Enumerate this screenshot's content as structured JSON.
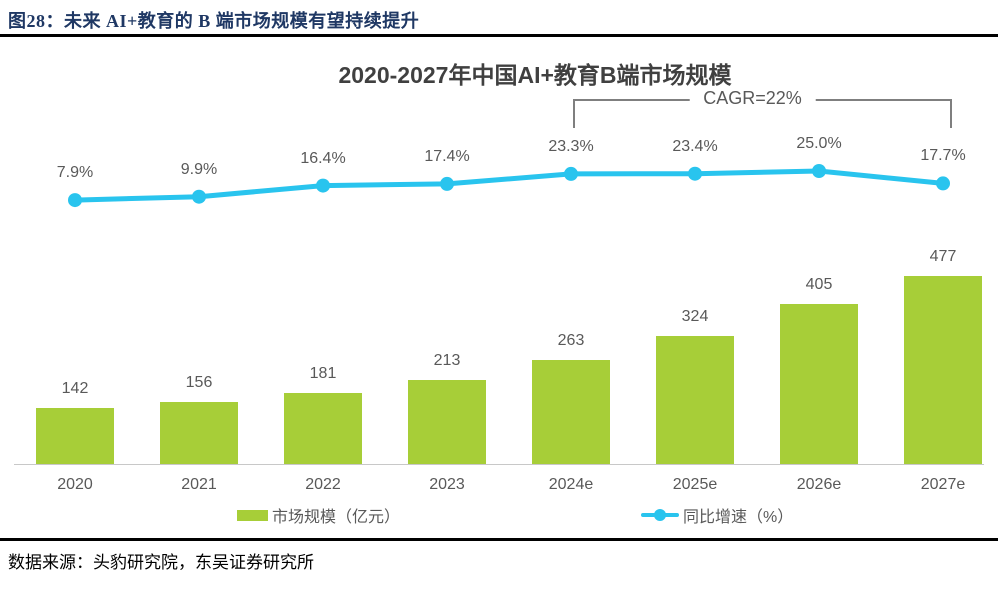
{
  "header": {
    "title": "图28：未来 AI+教育的 B 端市场规模有望持续提升"
  },
  "chart_data": {
    "type": "combo",
    "title": "2020-2027年中国AI+教育B端市场规模",
    "categories": [
      "2020",
      "2021",
      "2022",
      "2023",
      "2024e",
      "2025e",
      "2026e",
      "2027e"
    ],
    "series": [
      {
        "name": "市场规模（亿元）",
        "type": "bar",
        "values": [
          142,
          156,
          181,
          213,
          263,
          324,
          405,
          477
        ],
        "unit": "亿元",
        "color": "#a7ce38"
      },
      {
        "name": "同比增速（%）",
        "type": "line",
        "values": [
          7.9,
          9.9,
          16.4,
          17.4,
          23.3,
          23.4,
          25.0,
          17.7
        ],
        "labels": [
          "7.9%",
          "9.9%",
          "16.4%",
          "17.4%",
          "23.3%",
          "23.4%",
          "25.0%",
          "17.7%"
        ],
        "unit": "%",
        "color": "#29c4ee"
      }
    ],
    "annotation": {
      "label": "CAGR=22%",
      "span_categories": [
        "2024e",
        "2027e"
      ],
      "span_indices": [
        4,
        7
      ]
    },
    "legend_position": "bottom",
    "grid": false,
    "value_labels": true,
    "colors": {
      "bar": "#a7ce38",
      "line": "#29c4ee",
      "label_text": "#595959",
      "bracket": "#7f7f7f",
      "header_text": "#1f3864"
    }
  },
  "footer": {
    "source": "数据来源：头豹研究院，东吴证券研究所"
  }
}
